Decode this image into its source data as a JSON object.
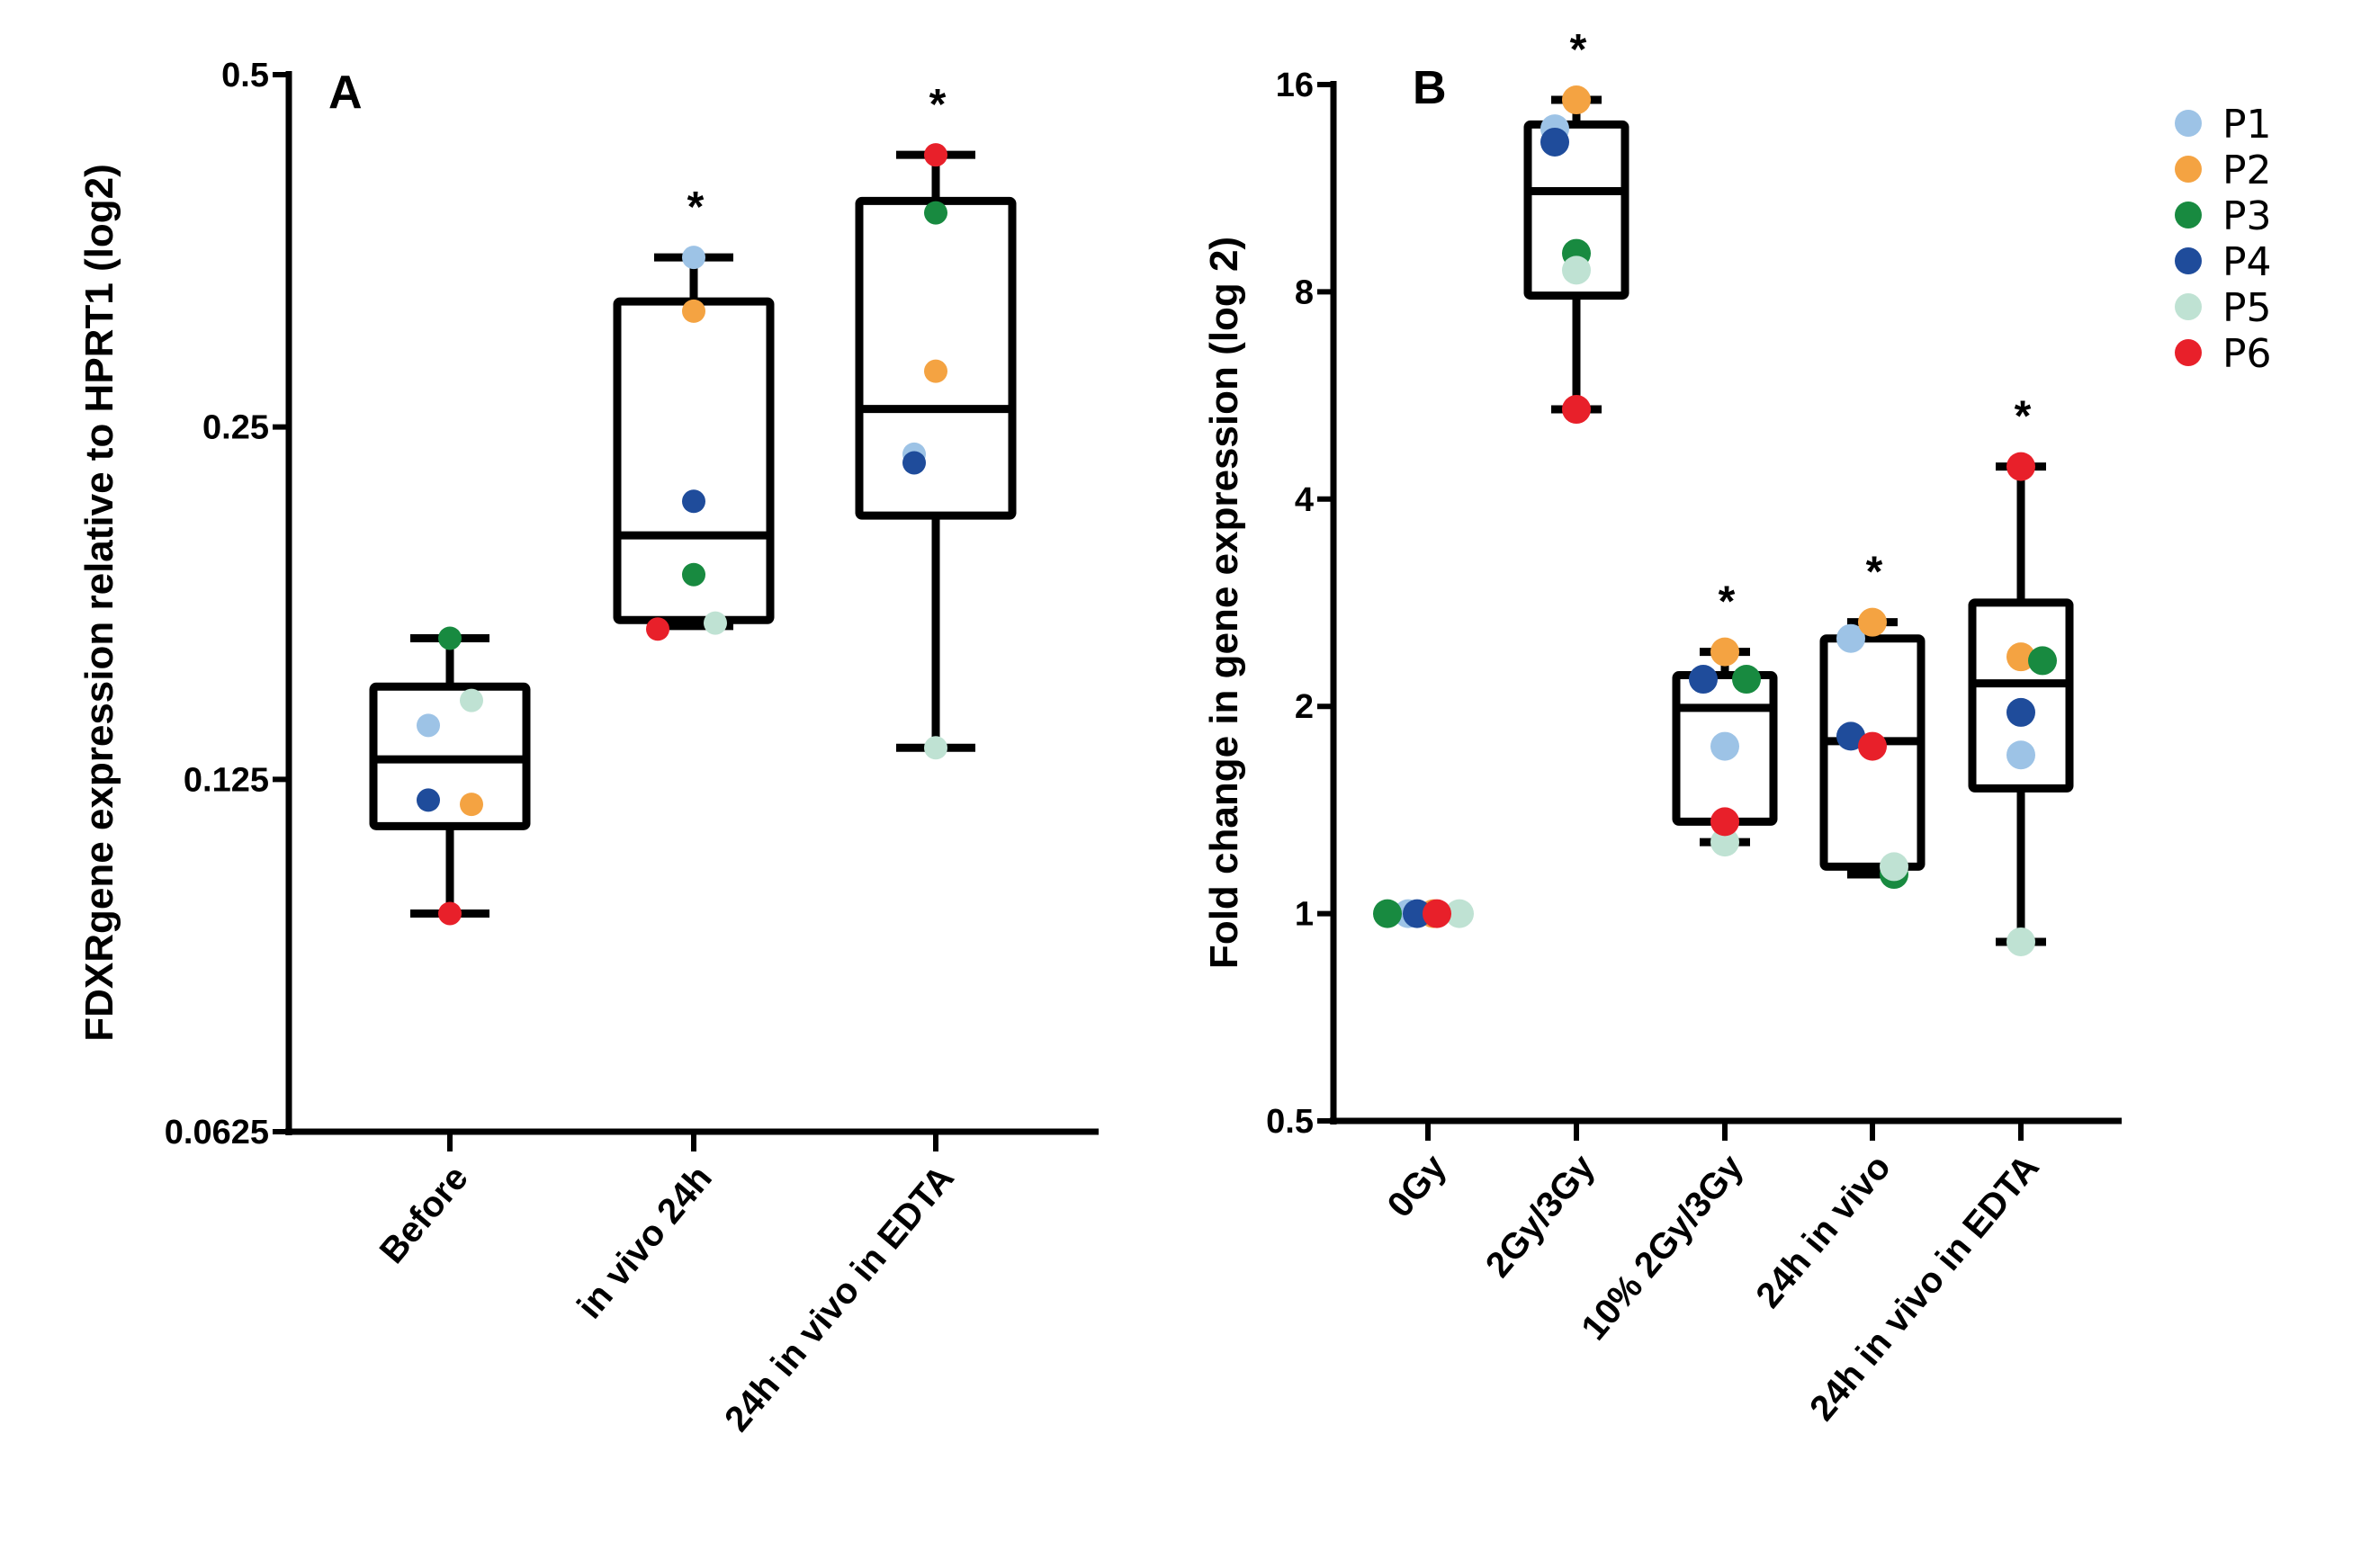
{
  "legend": [
    {
      "name": "P1",
      "color": "#9dc3e6"
    },
    {
      "name": "P2",
      "color": "#f4a342"
    },
    {
      "name": "P3",
      "color": "#188a40"
    },
    {
      "name": "P4",
      "color": "#1f4c9b"
    },
    {
      "name": "P5",
      "color": "#bfe2d3"
    },
    {
      "name": "P6",
      "color": "#e8202a"
    }
  ],
  "chart_data": [
    {
      "type": "box",
      "panel_label": "A",
      "ylabel": "FDXRgene expression relative to HPRT1 (log2)",
      "yscale": "log2",
      "ylim": [
        0.0625,
        0.5
      ],
      "yticks": [
        "0.0625",
        "0.125",
        "0.25",
        "0.5"
      ],
      "yticks_values": [
        0.0625,
        0.125,
        0.25,
        0.5
      ],
      "categories": [
        "Before",
        "in vivo 24h",
        "24h in vivo in EDTA"
      ],
      "significance": [
        "",
        "*",
        "*"
      ],
      "boxes": [
        {
          "min": 0.096,
          "q1": 0.114,
          "median": 0.13,
          "q3": 0.15,
          "max": 0.165
        },
        {
          "min": 0.169,
          "q1": 0.171,
          "median": 0.202,
          "q3": 0.32,
          "max": 0.349
        },
        {
          "min": 0.133,
          "q1": 0.21,
          "median": 0.259,
          "q3": 0.39,
          "max": 0.427
        }
      ],
      "points": {
        "P1": [
          0.139,
          0.349,
          0.237
        ],
        "P2": [
          0.119,
          0.314,
          0.279
        ],
        "P3": [
          0.165,
          0.187,
          0.381
        ],
        "P4": [
          0.12,
          0.216,
          0.233
        ],
        "P5": [
          0.146,
          0.17,
          0.133
        ],
        "P6": [
          0.096,
          0.168,
          0.427
        ]
      }
    },
    {
      "type": "box",
      "panel_label": "B",
      "ylabel": "Fold change in gene expression (log 2)",
      "yscale": "log2",
      "ylim": [
        0.5,
        16
      ],
      "yticks": [
        "0.5",
        "1",
        "2",
        "4",
        "8",
        "16"
      ],
      "yticks_values": [
        0.5,
        1,
        2,
        4,
        8,
        16
      ],
      "categories": [
        "0Gy",
        "2Gy/3Gy",
        "10% 2Gy/3Gy",
        "24h in vivo",
        "24h in vivo in EDTA"
      ],
      "significance": [
        "",
        "*",
        "*",
        "*",
        "*"
      ],
      "boxes": [
        null,
        {
          "min": 5.4,
          "q1": 7.9,
          "median": 11.2,
          "q3": 14.0,
          "max": 15.2
        },
        {
          "min": 1.27,
          "q1": 1.36,
          "median": 1.99,
          "q3": 2.22,
          "max": 2.4
        },
        {
          "min": 1.14,
          "q1": 1.17,
          "median": 1.78,
          "q3": 2.51,
          "max": 2.65
        },
        {
          "min": 0.91,
          "q1": 1.52,
          "median": 2.16,
          "q3": 2.83,
          "max": 4.46
        }
      ],
      "points": {
        "P1": [
          1,
          13.8,
          1.75,
          2.51,
          1.7
        ],
        "P2": [
          1,
          15.2,
          2.4,
          2.65,
          2.36
        ],
        "P3": [
          1,
          9.1,
          2.19,
          1.14,
          2.33
        ],
        "P4": [
          1,
          13.2,
          2.19,
          1.81,
          1.96
        ],
        "P5": [
          1,
          8.6,
          1.27,
          1.17,
          0.91
        ],
        "P6": [
          1,
          5.4,
          1.36,
          1.75,
          4.46
        ]
      }
    }
  ]
}
